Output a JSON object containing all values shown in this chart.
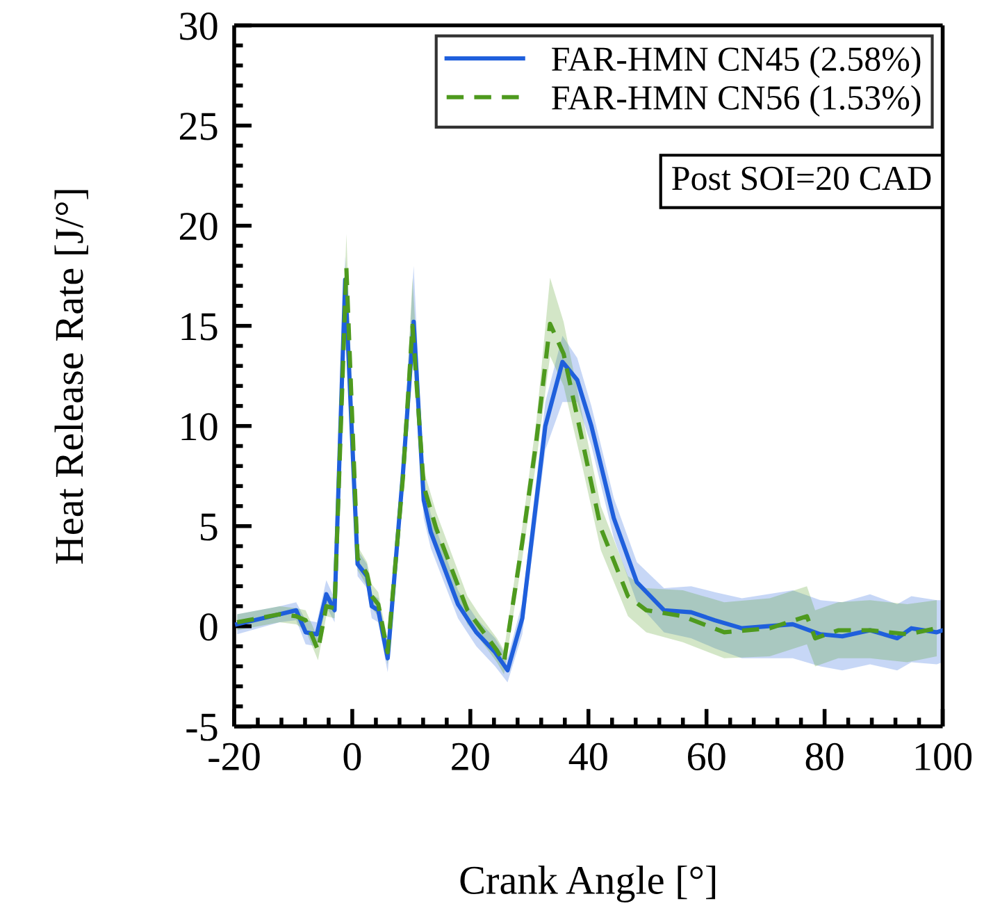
{
  "chart_data": {
    "type": "line",
    "xlabel": "Crank Angle [°]",
    "ylabel": "Heat Release Rate [J/°]",
    "xlim": [
      -20,
      100
    ],
    "xticks": [
      -20,
      0,
      20,
      40,
      60,
      80,
      100
    ],
    "ylim": [
      -5,
      30
    ],
    "yticks": [
      -5,
      0,
      5,
      10,
      15,
      20,
      25,
      30
    ],
    "grid": false,
    "legend": "top right",
    "annotations": [
      "Post SOI=20 CAD"
    ],
    "series": [
      {
        "name": "FAR-HMN CN45 (2.58%)",
        "color": "#1f5fdc",
        "line_style": "solid",
        "x": [
          -19.5,
          -12.3,
          -9.5,
          -7.9,
          -6,
          -4.4,
          -3,
          -1.2,
          0.9,
          2.5,
          3.3,
          4.4,
          6,
          8.6,
          10.4,
          12.1,
          13.3,
          17.9,
          21,
          24.2,
          26.3,
          28.8,
          32.7,
          35.6,
          38.1,
          40.5,
          44.3,
          48.2,
          52.8,
          57.4,
          61.4,
          66,
          74.6,
          79.3,
          83,
          87.7,
          92.3,
          94.7,
          99,
          100
        ],
        "values": [
          0.1,
          0.6,
          0.8,
          -0.3,
          -0.4,
          1.6,
          0.8,
          17.3,
          3.1,
          2.5,
          1.0,
          0.8,
          -1.6,
          7.7,
          15.2,
          6.3,
          4.7,
          1.1,
          -0.3,
          -1.3,
          -2.2,
          0.4,
          10,
          13.2,
          12.3,
          10,
          5.4,
          2.2,
          0.8,
          0.7,
          0.3,
          -0.1,
          0.1,
          -0.4,
          -0.5,
          -0.2,
          -0.6,
          -0.1,
          -0.3,
          -0.2
        ],
        "lower": [
          -0.4,
          0.2,
          0.3,
          -0.9,
          -1.0,
          1.0,
          0.2,
          16.3,
          2.5,
          1.9,
          0.4,
          0.2,
          -2.3,
          6.9,
          13.8,
          5.4,
          3.9,
          0.4,
          -1.0,
          -2.0,
          -2.8,
          -0.4,
          8.8,
          11.2,
          11.2,
          9.0,
          4.4,
          1.2,
          -0.3,
          -0.6,
          -1.1,
          -1.6,
          -1.6,
          -2.0,
          -2.2,
          -1.9,
          -2.2,
          -1.8,
          -1.9,
          -1.8
        ],
        "upper": [
          0.6,
          1.0,
          1.2,
          0.3,
          0.2,
          2.3,
          1.4,
          18.5,
          3.8,
          3.1,
          1.6,
          1.4,
          -0.9,
          8.5,
          18.0,
          7.3,
          5.6,
          1.8,
          0.4,
          -0.6,
          -1.6,
          1.2,
          11.2,
          14.5,
          13.4,
          11.0,
          6.4,
          3.2,
          1.9,
          2.0,
          1.7,
          1.4,
          1.8,
          1.3,
          1.2,
          1.6,
          1.1,
          1.5,
          1.3,
          1.3
        ]
      },
      {
        "name": "FAR-HMN CN56 (1.53%)",
        "color": "#4e9a1e",
        "line_style": "dashed",
        "x": [
          -19.5,
          -12.3,
          -9.5,
          -7.9,
          -5.8,
          -4.4,
          -3,
          -1,
          0.9,
          2.5,
          3.3,
          4.4,
          6,
          8.6,
          10.2,
          12.1,
          14.2,
          19.5,
          21.5,
          24.5,
          25.7,
          28.8,
          31.2,
          33.5,
          35.8,
          38.8,
          42.1,
          46.7,
          49.8,
          56,
          63,
          70.7,
          77,
          78.4,
          82.3,
          87.7,
          94,
          99
        ],
        "values": [
          0.2,
          0.6,
          0.5,
          0.3,
          -1.2,
          1.0,
          0.9,
          17.9,
          3.4,
          2.6,
          1.5,
          1.1,
          -1.3,
          7.5,
          15.0,
          7.0,
          4.9,
          0.8,
          0.0,
          -1.2,
          -1.8,
          4.2,
          9.3,
          15.1,
          13.6,
          9.5,
          4.9,
          1.5,
          0.8,
          0.5,
          -0.3,
          -0.1,
          0.5,
          -0.6,
          -0.2,
          -0.2,
          -0.4,
          -0.1
        ],
        "lower": [
          -0.2,
          0.2,
          0.1,
          -0.2,
          -1.7,
          0.5,
          0.4,
          16.5,
          2.8,
          2.0,
          0.9,
          0.5,
          -1.9,
          6.8,
          13.6,
          6.2,
          4.1,
          0.1,
          -0.6,
          -1.8,
          -2.4,
          3.4,
          8.3,
          13.5,
          12.0,
          8.2,
          3.8,
          0.5,
          -0.3,
          -0.8,
          -1.6,
          -1.5,
          -0.9,
          -2.0,
          -1.6,
          -1.6,
          -1.8,
          -1.5
        ],
        "upper": [
          0.6,
          1.0,
          0.9,
          0.8,
          -0.6,
          1.5,
          1.4,
          19.6,
          4.0,
          3.2,
          2.1,
          1.7,
          -0.7,
          8.3,
          17.4,
          7.8,
          5.7,
          1.5,
          0.6,
          -0.6,
          -1.2,
          5.0,
          10.3,
          17.4,
          15.2,
          10.8,
          6.0,
          2.5,
          1.9,
          1.8,
          1.2,
          1.4,
          2.0,
          0.8,
          1.2,
          1.3,
          1.1,
          1.3
        ]
      }
    ]
  }
}
